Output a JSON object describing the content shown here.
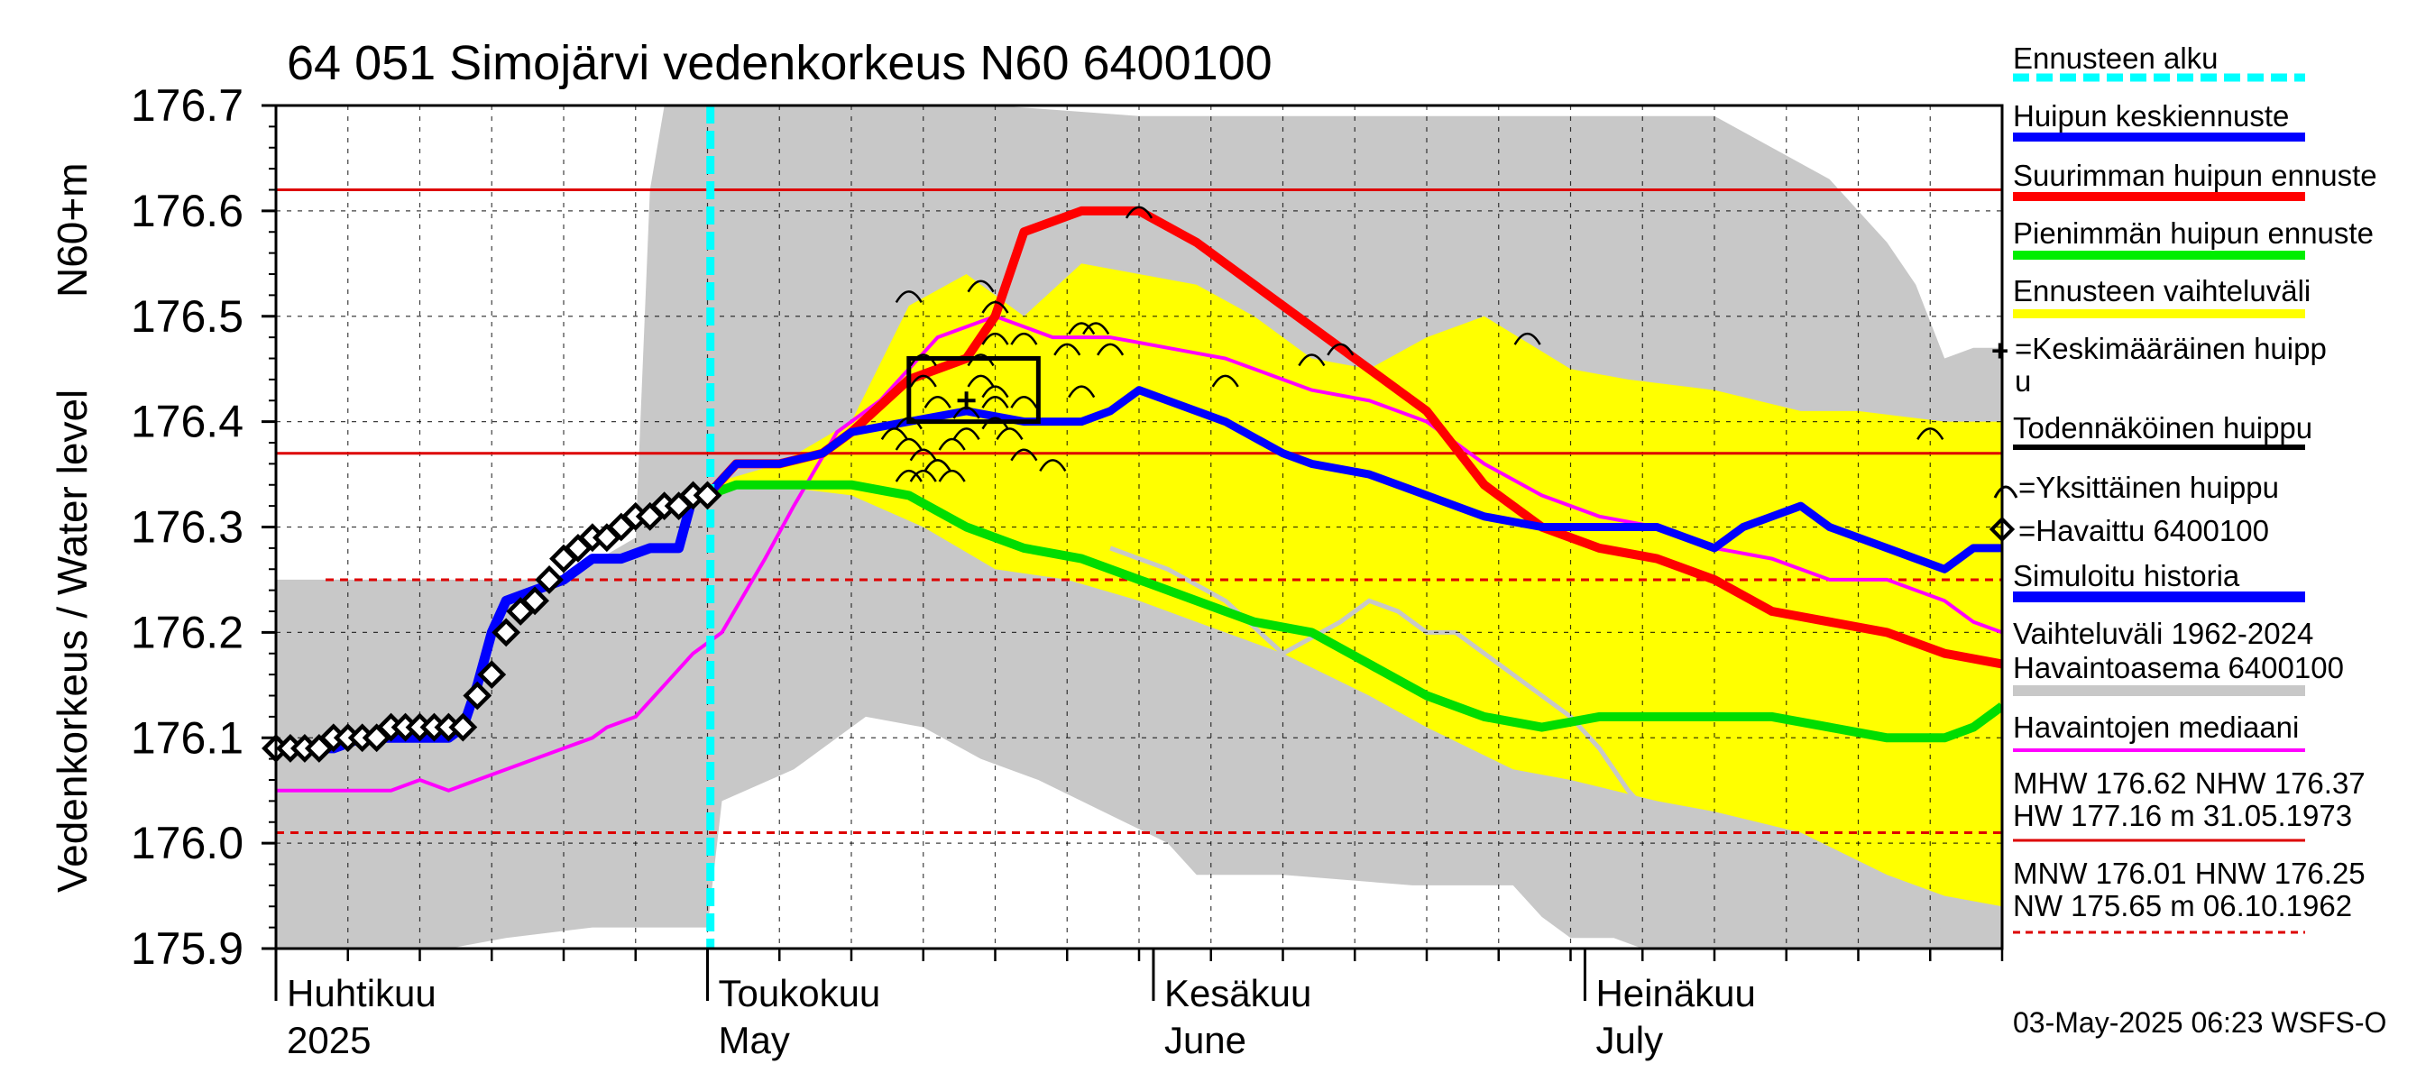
{
  "chart_data": {
    "type": "line",
    "title": "64 051 Simojärvi vedenkorkeus N60 6400100",
    "ylabel": "Vedenkorkeus / Water level",
    "ylabel_unit": "N60+m",
    "ylim": [
      175.9,
      176.7
    ],
    "yticks": [
      "176.7",
      "176.6",
      "176.5",
      "176.4",
      "176.3",
      "176.2",
      "176.1",
      "176.0",
      "175.9"
    ],
    "xlim_days": [
      0,
      120
    ],
    "x_month_labels": [
      {
        "fi": "Huhtikuu",
        "en": "2025",
        "day": 0
      },
      {
        "fi": "Toukokuu",
        "en": "May",
        "day": 30
      },
      {
        "fi": "Kesäkuu",
        "en": "June",
        "day": 61
      },
      {
        "fi": "Heinäkuu",
        "en": "July",
        "day": 91
      }
    ],
    "forecast_start_day": 30.2,
    "reference_lines": [
      {
        "name": "MHW",
        "value": 176.62,
        "style": "solid"
      },
      {
        "name": "NHW",
        "value": 176.37,
        "style": "solid"
      },
      {
        "name": "HNW",
        "value": 176.25,
        "style": "dashed"
      },
      {
        "name": "MNW",
        "value": 176.01,
        "style": "dashed"
      }
    ],
    "colors": {
      "forecast_start": "#00ffff",
      "mean_peak": "#0000ff",
      "max_peak": "#ff0000",
      "min_peak": "#00dd00",
      "forecast_range": "#ffff00",
      "history_range": "#c8c8c8",
      "median": "#ff00ff",
      "ref_line": "#dd0000"
    },
    "series": {
      "history_range_upper": [
        [
          0,
          176.25
        ],
        [
          20,
          176.25
        ],
        [
          25,
          176.29
        ],
        [
          26,
          176.62
        ],
        [
          27,
          176.7
        ],
        [
          50,
          176.7
        ],
        [
          60,
          176.69
        ],
        [
          80,
          176.69
        ],
        [
          100,
          176.69
        ],
        [
          108,
          176.63
        ],
        [
          112,
          176.57
        ],
        [
          114,
          176.53
        ],
        [
          116,
          176.46
        ],
        [
          118,
          176.47
        ],
        [
          120,
          176.47
        ]
      ],
      "history_range_lower": [
        [
          0,
          175.9
        ],
        [
          12,
          175.9
        ],
        [
          16,
          175.91
        ],
        [
          22,
          175.92
        ],
        [
          26,
          175.92
        ],
        [
          30,
          175.92
        ],
        [
          31,
          176.04
        ],
        [
          36,
          176.07
        ],
        [
          41,
          176.12
        ],
        [
          45,
          176.11
        ],
        [
          49,
          176.08
        ],
        [
          53,
          176.06
        ],
        [
          56,
          176.04
        ],
        [
          59,
          176.02
        ],
        [
          62,
          176.0
        ],
        [
          64,
          175.97
        ],
        [
          70,
          175.97
        ],
        [
          79,
          175.96
        ],
        [
          86,
          175.96
        ],
        [
          88,
          175.93
        ],
        [
          90,
          175.91
        ],
        [
          93,
          175.91
        ],
        [
          95,
          175.9
        ],
        [
          120,
          175.9
        ]
      ],
      "forecast_range_upper": [
        [
          30,
          176.34
        ],
        [
          35,
          176.36
        ],
        [
          40,
          176.4
        ],
        [
          44,
          176.51
        ],
        [
          48,
          176.54
        ],
        [
          52,
          176.5
        ],
        [
          56,
          176.55
        ],
        [
          60,
          176.54
        ],
        [
          64,
          176.53
        ],
        [
          68,
          176.5
        ],
        [
          72,
          176.46
        ],
        [
          76,
          176.45
        ],
        [
          80,
          176.48
        ],
        [
          84,
          176.5
        ],
        [
          90,
          176.45
        ],
        [
          94,
          176.44
        ],
        [
          100,
          176.43
        ],
        [
          106,
          176.41
        ],
        [
          110,
          176.41
        ],
        [
          116,
          176.4
        ],
        [
          120,
          176.4
        ]
      ],
      "forecast_range_lower": [
        [
          30,
          176.34
        ],
        [
          34,
          176.34
        ],
        [
          40,
          176.33
        ],
        [
          45,
          176.3
        ],
        [
          50,
          176.26
        ],
        [
          55,
          176.25
        ],
        [
          60,
          176.23
        ],
        [
          64,
          176.21
        ],
        [
          70,
          176.18
        ],
        [
          76,
          176.14
        ],
        [
          80,
          176.11
        ],
        [
          86,
          176.07
        ],
        [
          90,
          176.06
        ],
        [
          96,
          176.04
        ],
        [
          100,
          176.03
        ],
        [
          106,
          176.01
        ],
        [
          112,
          175.97
        ],
        [
          116,
          175.95
        ],
        [
          120,
          175.94
        ]
      ],
      "history_gray_low_segment": [
        [
          58,
          176.28
        ],
        [
          62,
          176.26
        ],
        [
          66,
          176.23
        ],
        [
          70,
          176.18
        ],
        [
          74,
          176.21
        ],
        [
          76,
          176.23
        ],
        [
          78,
          176.22
        ],
        [
          80,
          176.2
        ],
        [
          82,
          176.2
        ],
        [
          84,
          176.18
        ],
        [
          86,
          176.16
        ],
        [
          88,
          176.14
        ],
        [
          90,
          176.12
        ],
        [
          92,
          176.09
        ],
        [
          94,
          176.05
        ],
        [
          96,
          176.02
        ],
        [
          98,
          176.0
        ],
        [
          100,
          175.98
        ],
        [
          102,
          176.0
        ],
        [
          104,
          175.97
        ],
        [
          106,
          175.94
        ],
        [
          108,
          175.94
        ],
        [
          110,
          175.96
        ],
        [
          112,
          175.95
        ],
        [
          114,
          175.93
        ],
        [
          116,
          175.92
        ]
      ],
      "median": [
        [
          0,
          176.05
        ],
        [
          4,
          176.05
        ],
        [
          8,
          176.05
        ],
        [
          10,
          176.06
        ],
        [
          12,
          176.05
        ],
        [
          14,
          176.06
        ],
        [
          18,
          176.08
        ],
        [
          22,
          176.1
        ],
        [
          23,
          176.11
        ],
        [
          25,
          176.12
        ],
        [
          27,
          176.15
        ],
        [
          29,
          176.18
        ],
        [
          31,
          176.2
        ],
        [
          34,
          176.27
        ],
        [
          36,
          176.32
        ],
        [
          39,
          176.39
        ],
        [
          42,
          176.42
        ],
        [
          46,
          176.48
        ],
        [
          50,
          176.5
        ],
        [
          54,
          176.48
        ],
        [
          58,
          176.48
        ],
        [
          62,
          176.47
        ],
        [
          66,
          176.46
        ],
        [
          70,
          176.44
        ],
        [
          72,
          176.43
        ],
        [
          76,
          176.42
        ],
        [
          80,
          176.4
        ],
        [
          84,
          176.36
        ],
        [
          88,
          176.33
        ],
        [
          92,
          176.31
        ],
        [
          96,
          176.3
        ],
        [
          100,
          176.28
        ],
        [
          104,
          176.27
        ],
        [
          108,
          176.25
        ],
        [
          112,
          176.25
        ],
        [
          114,
          176.24
        ],
        [
          116,
          176.23
        ],
        [
          118,
          176.21
        ],
        [
          120,
          176.2
        ]
      ],
      "mean_peak_forecast": [
        [
          30,
          176.33
        ],
        [
          32,
          176.36
        ],
        [
          35,
          176.36
        ],
        [
          38,
          176.37
        ],
        [
          40,
          176.39
        ],
        [
          44,
          176.4
        ],
        [
          48,
          176.41
        ],
        [
          52,
          176.4
        ],
        [
          56,
          176.4
        ],
        [
          58,
          176.41
        ],
        [
          60,
          176.43
        ],
        [
          62,
          176.42
        ],
        [
          66,
          176.4
        ],
        [
          70,
          176.37
        ],
        [
          72,
          176.36
        ],
        [
          76,
          176.35
        ],
        [
          80,
          176.33
        ],
        [
          84,
          176.31
        ],
        [
          88,
          176.3
        ],
        [
          92,
          176.3
        ],
        [
          96,
          176.3
        ],
        [
          98,
          176.29
        ],
        [
          100,
          176.28
        ],
        [
          102,
          176.3
        ],
        [
          104,
          176.31
        ],
        [
          106,
          176.32
        ],
        [
          108,
          176.3
        ],
        [
          110,
          176.29
        ],
        [
          112,
          176.28
        ],
        [
          114,
          176.27
        ],
        [
          116,
          176.26
        ],
        [
          118,
          176.28
        ],
        [
          120,
          176.28
        ]
      ],
      "max_peak_forecast": [
        [
          30,
          176.33
        ],
        [
          32,
          176.36
        ],
        [
          35,
          176.36
        ],
        [
          38,
          176.37
        ],
        [
          40,
          176.39
        ],
        [
          44,
          176.44
        ],
        [
          48,
          176.46
        ],
        [
          50,
          176.5
        ],
        [
          52,
          176.58
        ],
        [
          56,
          176.6
        ],
        [
          60,
          176.6
        ],
        [
          64,
          176.57
        ],
        [
          68,
          176.53
        ],
        [
          72,
          176.49
        ],
        [
          76,
          176.45
        ],
        [
          80,
          176.41
        ],
        [
          84,
          176.34
        ],
        [
          88,
          176.3
        ],
        [
          92,
          176.28
        ],
        [
          96,
          176.27
        ],
        [
          100,
          176.25
        ],
        [
          104,
          176.22
        ],
        [
          108,
          176.21
        ],
        [
          112,
          176.2
        ],
        [
          116,
          176.18
        ],
        [
          120,
          176.17
        ]
      ],
      "min_peak_forecast": [
        [
          30,
          176.33
        ],
        [
          32,
          176.34
        ],
        [
          36,
          176.34
        ],
        [
          40,
          176.34
        ],
        [
          44,
          176.33
        ],
        [
          48,
          176.3
        ],
        [
          52,
          176.28
        ],
        [
          56,
          176.27
        ],
        [
          60,
          176.25
        ],
        [
          64,
          176.23
        ],
        [
          68,
          176.21
        ],
        [
          72,
          176.2
        ],
        [
          76,
          176.17
        ],
        [
          80,
          176.14
        ],
        [
          84,
          176.12
        ],
        [
          88,
          176.11
        ],
        [
          92,
          176.12
        ],
        [
          96,
          176.12
        ],
        [
          100,
          176.12
        ],
        [
          104,
          176.12
        ],
        [
          108,
          176.11
        ],
        [
          112,
          176.1
        ],
        [
          116,
          176.1
        ],
        [
          118,
          176.11
        ],
        [
          120,
          176.13
        ]
      ],
      "simulated_history": [
        [
          0,
          176.09
        ],
        [
          2,
          176.09
        ],
        [
          4,
          176.09
        ],
        [
          6,
          176.1
        ],
        [
          8,
          176.1
        ],
        [
          10,
          176.1
        ],
        [
          12,
          176.1
        ],
        [
          13,
          176.11
        ],
        [
          14,
          176.15
        ],
        [
          15,
          176.2
        ],
        [
          16,
          176.23
        ],
        [
          18,
          176.24
        ],
        [
          20,
          176.25
        ],
        [
          22,
          176.27
        ],
        [
          24,
          176.27
        ],
        [
          26,
          176.28
        ],
        [
          28,
          176.28
        ],
        [
          29,
          176.33
        ],
        [
          30,
          176.33
        ]
      ],
      "observed": [
        [
          0,
          176.09
        ],
        [
          1,
          176.09
        ],
        [
          2,
          176.09
        ],
        [
          3,
          176.09
        ],
        [
          4,
          176.1
        ],
        [
          5,
          176.1
        ],
        [
          6,
          176.1
        ],
        [
          7,
          176.1
        ],
        [
          8,
          176.11
        ],
        [
          9,
          176.11
        ],
        [
          10,
          176.11
        ],
        [
          11,
          176.11
        ],
        [
          12,
          176.11
        ],
        [
          13,
          176.11
        ],
        [
          14,
          176.14
        ],
        [
          15,
          176.16
        ],
        [
          16,
          176.2
        ],
        [
          17,
          176.22
        ],
        [
          18,
          176.23
        ],
        [
          19,
          176.25
        ],
        [
          20,
          176.27
        ],
        [
          21,
          176.28
        ],
        [
          22,
          176.29
        ],
        [
          23,
          176.29
        ],
        [
          24,
          176.3
        ],
        [
          25,
          176.31
        ],
        [
          26,
          176.31
        ],
        [
          27,
          176.32
        ],
        [
          28,
          176.32
        ],
        [
          29,
          176.33
        ],
        [
          30,
          176.33
        ]
      ],
      "individual_peaks": [
        [
          44,
          176.52
        ],
        [
          49,
          176.53
        ],
        [
          50,
          176.51
        ],
        [
          50,
          176.48
        ],
        [
          45,
          176.46
        ],
        [
          49,
          176.46
        ],
        [
          52,
          176.48
        ],
        [
          56,
          176.49
        ],
        [
          57,
          176.49
        ],
        [
          55,
          176.47
        ],
        [
          58,
          176.47
        ],
        [
          49,
          176.44
        ],
        [
          50,
          176.43
        ],
        [
          52,
          176.42
        ],
        [
          56,
          176.43
        ],
        [
          45,
          176.44
        ],
        [
          46,
          176.42
        ],
        [
          48,
          176.41
        ],
        [
          50,
          176.4
        ],
        [
          45,
          176.37
        ],
        [
          46,
          176.36
        ],
        [
          44,
          176.38
        ],
        [
          47,
          176.38
        ],
        [
          43,
          176.39
        ],
        [
          44,
          176.4
        ],
        [
          48,
          176.39
        ],
        [
          51,
          176.39
        ],
        [
          52,
          176.37
        ],
        [
          54,
          176.36
        ],
        [
          44,
          176.35
        ],
        [
          45,
          176.35
        ],
        [
          46,
          176.36
        ],
        [
          47,
          176.35
        ],
        [
          50,
          176.42
        ],
        [
          60,
          176.6
        ],
        [
          66,
          176.44
        ],
        [
          72,
          176.46
        ],
        [
          74,
          176.47
        ],
        [
          87,
          176.48
        ],
        [
          115,
          176.39
        ]
      ],
      "probable_peak_box": {
        "x0": 44,
        "x1": 53,
        "y0": 176.4,
        "y1": 176.46
      },
      "average_peak": [
        48,
        176.42
      ]
    }
  },
  "legend": {
    "forecast_start": "Ennusteen alku",
    "mean_peak": "Huipun keskiennuste",
    "max_peak": "Suurimman huipun ennuste",
    "min_peak": "Pienimmän huipun ennuste",
    "forecast_range": "Ennusteen vaihteluväli",
    "average_peak_line1": "=Keskimääräinen huipp",
    "average_peak_line2": "u",
    "probable_peak": "Todennäköinen huippu",
    "individual_peak": "=Yksittäinen huippu",
    "observed": "=Havaittu 6400100",
    "simulated": "Simuloitu historia",
    "history_range_line1": "Vaihteluväli 1962-2024",
    "history_range_line2": " Havaintoasema 6400100",
    "median": "Havaintojen mediaani",
    "hw_line1": "MHW 176.62 NHW 176.37",
    "hw_line2": "HW 177.16 m 31.05.1973",
    "nw_line1": "MNW 176.01 HNW 176.25",
    "nw_line2": "NW 175.65 m 06.10.1962"
  },
  "footer": "03-May-2025 06:23 WSFS-O"
}
